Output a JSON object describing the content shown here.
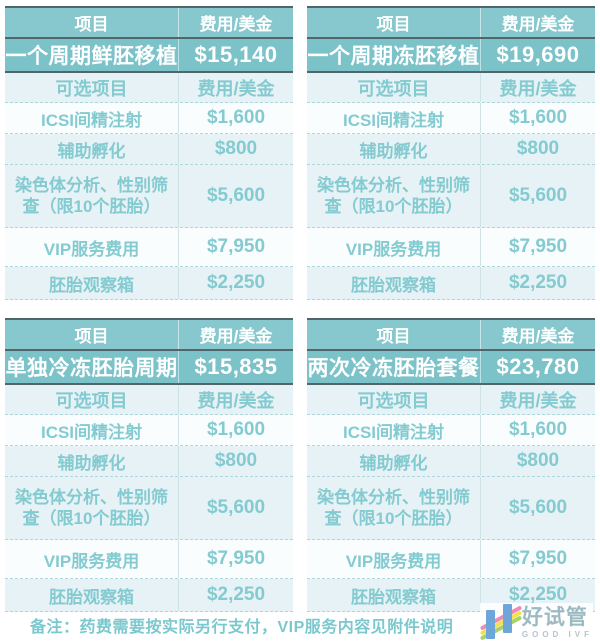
{
  "columns": {
    "item": "项目",
    "fee": "费用/美金"
  },
  "tables": [
    {
      "package": "一个周期鲜胚移植",
      "price": "$15,140"
    },
    {
      "package": "一个周期冻胚移植",
      "price": "$19,690"
    },
    {
      "package": "单独冷冻胚胎周期",
      "price": "$15,835"
    },
    {
      "package": "两次冷冻胚胎套餐",
      "price": "$23,780"
    }
  ],
  "optional": {
    "header_item": "可选项目",
    "header_fee": "费用/美金",
    "items": [
      {
        "name": "ICSI间精注射",
        "fee": "$1,600"
      },
      {
        "name": "辅助孵化",
        "fee": "$800"
      },
      {
        "name": "染色体分析、性别筛查（限10个胚胎）",
        "fee": "$5,600"
      },
      {
        "name": "VIP服务费用",
        "fee": "$7,950"
      },
      {
        "name": "胚胎观察箱",
        "fee": "$2,250"
      }
    ]
  },
  "note": "备注：药费需要按实际另行支付，VIP服务内容见附件说明",
  "logo": {
    "title": "好试管",
    "subtitle": "GOOD IVF"
  },
  "colors": {
    "header_teal": "#86c8cd",
    "highlight_teal": "#7cc3c9",
    "dark_border": "#51656a",
    "row_tint": "#e6f2f5",
    "text_teal": "#84cbd1",
    "logo_blue": "#6fa6d9"
  }
}
